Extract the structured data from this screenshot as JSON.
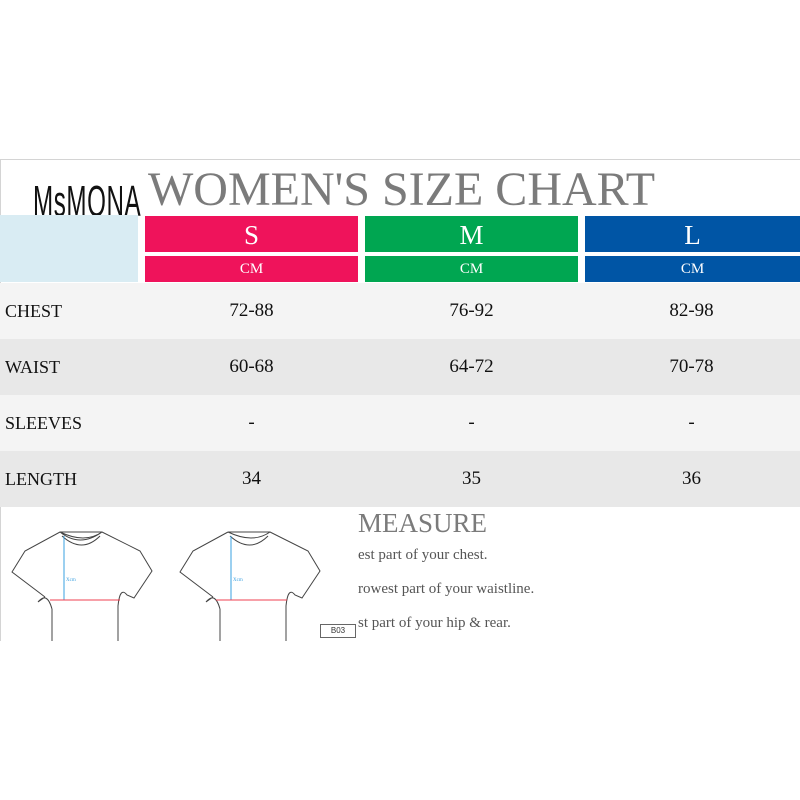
{
  "brand": "MsMONA",
  "title": "WOMEN'S SIZE CHART",
  "colors": {
    "S": "#ef135b",
    "M": "#00a651",
    "L": "#0055a5",
    "header_blank": "#d9ecf3",
    "row_light": "#f4f4f4",
    "row_dark": "#e8e8e8"
  },
  "sizes": [
    {
      "label": "S",
      "unit": "CM"
    },
    {
      "label": "M",
      "unit": "CM"
    },
    {
      "label": "L",
      "unit": "CM"
    }
  ],
  "rows": [
    {
      "label": "CHEST",
      "values": [
        "72-88",
        "76-92",
        "82-98"
      ]
    },
    {
      "label": "WAIST",
      "values": [
        "60-68",
        "64-72",
        "70-78"
      ]
    },
    {
      "label": "SLEEVES",
      "values": [
        "-",
        "-",
        "-"
      ]
    },
    {
      "label": "LENGTH",
      "values": [
        "34",
        "35",
        "36"
      ]
    }
  ],
  "measure": {
    "heading": "MEASURE",
    "tips": [
      "est part of your chest.",
      "rowest part of your waistline.",
      "st part of your hip & rear."
    ],
    "diagram_label": "Xcm",
    "code": "B03"
  }
}
